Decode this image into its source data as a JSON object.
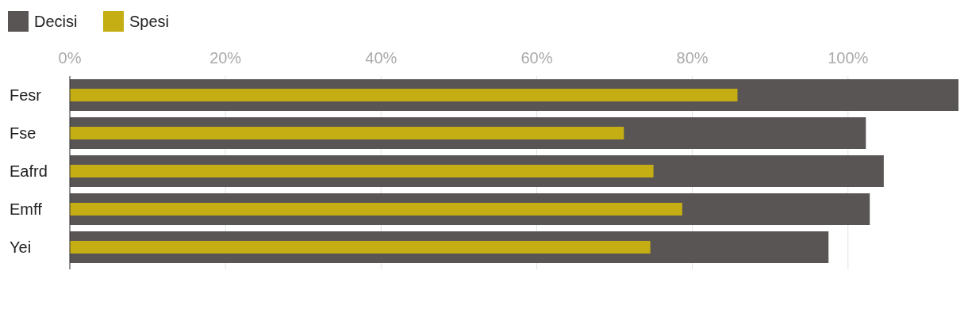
{
  "chart_data": {
    "type": "bar",
    "orientation": "horizontal",
    "categories": [
      "Fesr",
      "Fse",
      "Eafrd",
      "Emff",
      "Yei"
    ],
    "series": [
      {
        "name": "Decisi",
        "color": "#5a5555",
        "values": [
          114.2,
          102.3,
          104.6,
          102.8,
          97.5
        ]
      },
      {
        "name": "Spesi",
        "color": "#c5ae14",
        "values": [
          85.8,
          71.2,
          75.0,
          78.7,
          74.6
        ]
      }
    ],
    "xlim": [
      0,
      114.2
    ],
    "xticks": [
      {
        "value": 0,
        "label": "0%"
      },
      {
        "value": 20,
        "label": "20%"
      },
      {
        "value": 40,
        "label": "40%"
      },
      {
        "value": 60,
        "label": "60%"
      },
      {
        "value": 80,
        "label": "80%"
      },
      {
        "value": 100,
        "label": "100%"
      }
    ],
    "grid": "x",
    "legend": "top left"
  }
}
